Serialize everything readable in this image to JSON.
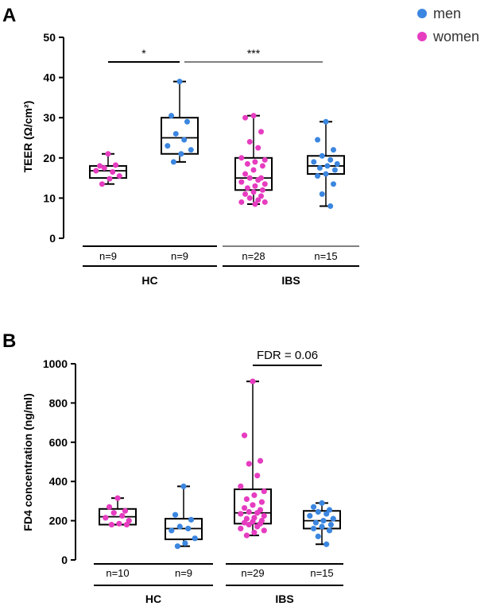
{
  "legend": [
    {
      "label": "men",
      "color": "#3b86e0"
    },
    {
      "label": "women",
      "color": "#e63cc0"
    }
  ],
  "chart_data": [
    {
      "panel": "A",
      "type": "boxplot",
      "ylabel": "TEER (Ω/cm²)",
      "ylim": [
        0,
        50
      ],
      "yticks": [
        0,
        10,
        20,
        30,
        40,
        50
      ],
      "groups": [
        {
          "name": "HC",
          "categories": [
            {
              "n_label": "n=9",
              "sex": "women",
              "whisker_low": 13.5,
              "q1": 15,
              "median": 16.8,
              "q3": 18,
              "whisker_high": 21,
              "points": [
                21,
                18,
                18.2,
                17.5,
                16.5,
                16.8,
                15.5,
                14.8,
                13.5
              ]
            },
            {
              "n_label": "n=9",
              "sex": "men",
              "whisker_low": 19,
              "q1": 21,
              "median": 25,
              "q3": 30,
              "whisker_high": 39,
              "points": [
                39,
                30.5,
                29,
                26,
                24.5,
                23,
                22,
                21,
                19
              ]
            }
          ]
        },
        {
          "name": "IBS",
          "categories": [
            {
              "n_label": "n=28",
              "sex": "women",
              "whisker_low": 8.5,
              "q1": 12,
              "median": 15,
              "q3": 20,
              "whisker_high": 30.5,
              "points": [
                30.5,
                30,
                26.5,
                24,
                22.5,
                20,
                19.5,
                19,
                18.5,
                18,
                17,
                16,
                15,
                15,
                14.5,
                14,
                13.5,
                13,
                12.5,
                12,
                11.5,
                11,
                10.5,
                10,
                9.5,
                9,
                9,
                8.5
              ]
            },
            {
              "n_label": "n=15",
              "sex": "men",
              "whisker_low": 8,
              "q1": 16,
              "median": 18,
              "q3": 20.5,
              "whisker_high": 29,
              "points": [
                29,
                24.5,
                22,
                20.5,
                19.5,
                19,
                18.5,
                18,
                17.5,
                17,
                16,
                15.5,
                13.5,
                11,
                8
              ]
            }
          ]
        }
      ],
      "annotations": [
        {
          "label": "*",
          "from": 0,
          "to": 1,
          "y": 44
        },
        {
          "label": "***",
          "from": 1,
          "to": 3,
          "y": 44
        }
      ]
    },
    {
      "panel": "B",
      "type": "boxplot",
      "ylabel": "FD4 concentration  (ng/ml)",
      "ylim": [
        0,
        1000
      ],
      "yticks": [
        0,
        200,
        400,
        600,
        800,
        1000
      ],
      "groups": [
        {
          "name": "HC",
          "categories": [
            {
              "n_label": "n=10",
              "sex": "women",
              "whisker_low": 180,
              "q1": 180,
              "median": 220,
              "q3": 260,
              "whisker_high": 315,
              "points": [
                315,
                270,
                250,
                240,
                225,
                215,
                200,
                185,
                180,
                180
              ]
            },
            {
              "n_label": "n=9",
              "sex": "men",
              "whisker_low": 70,
              "q1": 105,
              "median": 160,
              "q3": 210,
              "whisker_high": 375,
              "points": [
                375,
                230,
                205,
                170,
                160,
                150,
                110,
                85,
                70
              ]
            }
          ]
        },
        {
          "name": "IBS",
          "categories": [
            {
              "n_label": "n=29",
              "sex": "women",
              "whisker_low": 125,
              "q1": 185,
              "median": 240,
              "q3": 360,
              "whisker_high": 910,
              "points": [
                910,
                635,
                505,
                490,
                430,
                375,
                350,
                330,
                310,
                295,
                280,
                265,
                255,
                245,
                240,
                235,
                225,
                215,
                210,
                200,
                195,
                190,
                185,
                180,
                170,
                160,
                150,
                140,
                125
              ]
            },
            {
              "n_label": "n=15",
              "sex": "men",
              "whisker_low": 80,
              "q1": 160,
              "median": 200,
              "q3": 250,
              "whisker_high": 290,
              "points": [
                290,
                270,
                255,
                245,
                235,
                225,
                210,
                200,
                190,
                180,
                170,
                160,
                150,
                120,
                80
              ]
            }
          ]
        }
      ],
      "annotations": [
        {
          "label": "FDR = 0.06",
          "from": 2,
          "to": 3,
          "y": 990
        }
      ]
    }
  ]
}
